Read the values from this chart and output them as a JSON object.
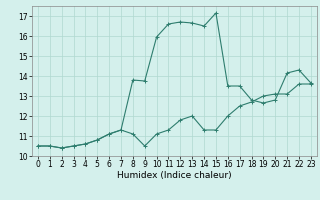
{
  "xlabel": "Humidex (Indice chaleur)",
  "xlim": [
    -0.5,
    23.5
  ],
  "ylim": [
    10,
    17.5
  ],
  "yticks": [
    10,
    11,
    12,
    13,
    14,
    15,
    16,
    17
  ],
  "xticks": [
    0,
    1,
    2,
    3,
    4,
    5,
    6,
    7,
    8,
    9,
    10,
    11,
    12,
    13,
    14,
    15,
    16,
    17,
    18,
    19,
    20,
    21,
    22,
    23
  ],
  "line1_x": [
    0,
    1,
    2,
    3,
    4,
    5,
    6,
    7,
    8,
    9,
    10,
    11,
    12,
    13,
    14,
    15,
    16,
    17,
    18,
    19,
    20,
    21,
    22,
    23
  ],
  "line1_y": [
    10.5,
    10.5,
    10.4,
    10.5,
    10.6,
    10.8,
    11.1,
    11.3,
    11.1,
    10.5,
    11.1,
    11.3,
    11.8,
    12.0,
    11.3,
    11.3,
    12.0,
    12.5,
    12.7,
    13.0,
    13.1,
    13.1,
    13.6,
    13.6
  ],
  "line2_x": [
    0,
    1,
    2,
    3,
    4,
    5,
    6,
    7,
    8,
    9,
    10,
    11,
    12,
    13,
    14,
    15,
    16,
    17,
    18,
    19,
    20,
    21,
    22,
    23
  ],
  "line2_y": [
    10.5,
    10.5,
    10.4,
    10.5,
    10.6,
    10.8,
    11.1,
    11.3,
    13.8,
    13.75,
    15.95,
    16.6,
    16.7,
    16.65,
    16.5,
    17.15,
    13.5,
    13.5,
    12.8,
    12.65,
    12.8,
    14.15,
    14.3,
    13.65
  ],
  "line_color": "#2e7d6e",
  "bg_color": "#d4f0ec",
  "grid_color": "#b0d8d0",
  "tick_fontsize": 5.5,
  "xlabel_fontsize": 6.5
}
